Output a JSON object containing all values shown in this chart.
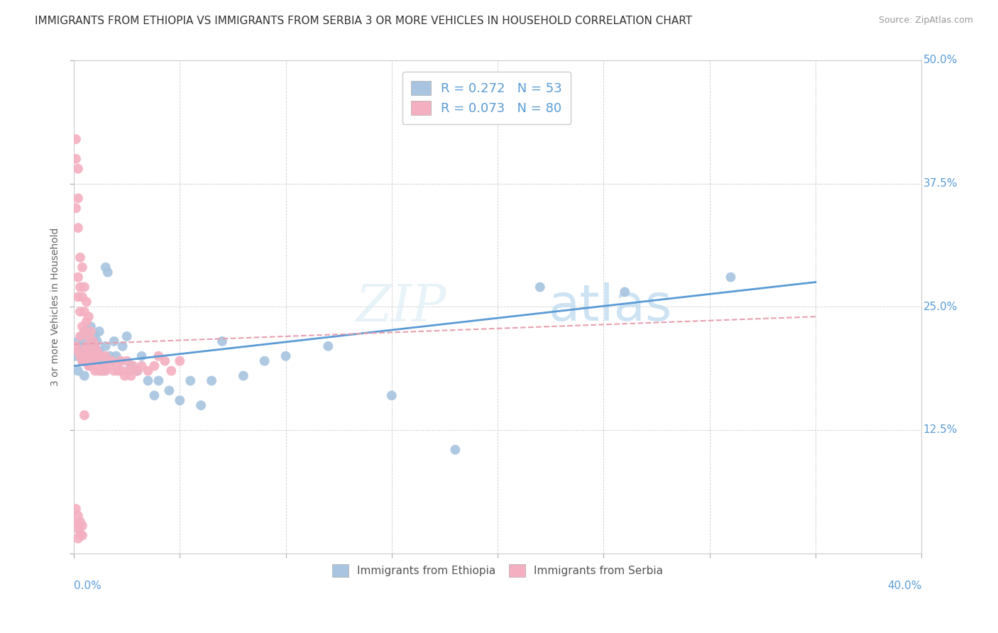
{
  "title": "IMMIGRANTS FROM ETHIOPIA VS IMMIGRANTS FROM SERBIA 3 OR MORE VEHICLES IN HOUSEHOLD CORRELATION CHART",
  "source": "Source: ZipAtlas.com",
  "ylabel_label": "3 or more Vehicles in Household",
  "legend_bottom": [
    "Immigrants from Ethiopia",
    "Immigrants from Serbia"
  ],
  "series": [
    {
      "name": "Immigrants from Ethiopia",
      "R": 0.272,
      "N": 53,
      "color_marker": "#a8c4e0",
      "color_line": "#5b9bd5",
      "line_style": "solid",
      "x": [
        0.001,
        0.002,
        0.002,
        0.003,
        0.003,
        0.004,
        0.004,
        0.005,
        0.005,
        0.006,
        0.006,
        0.007,
        0.008,
        0.008,
        0.009,
        0.01,
        0.01,
        0.011,
        0.012,
        0.012,
        0.013,
        0.014,
        0.015,
        0.015,
        0.016,
        0.017,
        0.018,
        0.019,
        0.02,
        0.022,
        0.023,
        0.025,
        0.027,
        0.03,
        0.032,
        0.035,
        0.038,
        0.04,
        0.045,
        0.05,
        0.055,
        0.06,
        0.065,
        0.07,
        0.08,
        0.09,
        0.1,
        0.12,
        0.15,
        0.18,
        0.22,
        0.26,
        0.31
      ],
      "y": [
        0.2,
        0.215,
        0.185,
        0.21,
        0.2,
        0.22,
        0.195,
        0.21,
        0.18,
        0.225,
        0.205,
        0.215,
        0.195,
        0.23,
        0.21,
        0.2,
        0.22,
        0.215,
        0.205,
        0.225,
        0.195,
        0.185,
        0.29,
        0.21,
        0.285,
        0.2,
        0.195,
        0.215,
        0.2,
        0.195,
        0.21,
        0.22,
        0.19,
        0.185,
        0.2,
        0.175,
        0.16,
        0.175,
        0.165,
        0.155,
        0.175,
        0.15,
        0.175,
        0.215,
        0.18,
        0.195,
        0.2,
        0.21,
        0.16,
        0.105,
        0.27,
        0.265,
        0.28
      ],
      "trend_x": [
        0.0,
        0.35
      ],
      "trend_y": [
        0.19,
        0.275
      ]
    },
    {
      "name": "Immigrants from Serbia",
      "R": 0.073,
      "N": 80,
      "color_marker": "#f4b0c0",
      "color_line": "#e8a0b0",
      "line_style": "dashed",
      "x": [
        0.001,
        0.001,
        0.001,
        0.001,
        0.002,
        0.002,
        0.002,
        0.002,
        0.002,
        0.002,
        0.003,
        0.003,
        0.003,
        0.003,
        0.003,
        0.004,
        0.004,
        0.004,
        0.004,
        0.005,
        0.005,
        0.005,
        0.005,
        0.005,
        0.006,
        0.006,
        0.006,
        0.006,
        0.007,
        0.007,
        0.007,
        0.007,
        0.008,
        0.008,
        0.008,
        0.009,
        0.009,
        0.01,
        0.01,
        0.01,
        0.011,
        0.011,
        0.012,
        0.012,
        0.013,
        0.013,
        0.014,
        0.015,
        0.015,
        0.016,
        0.017,
        0.018,
        0.019,
        0.02,
        0.021,
        0.022,
        0.023,
        0.024,
        0.025,
        0.026,
        0.027,
        0.028,
        0.03,
        0.032,
        0.035,
        0.038,
        0.04,
        0.043,
        0.046,
        0.05,
        0.001,
        0.001,
        0.002,
        0.002,
        0.002,
        0.003,
        0.003,
        0.004,
        0.004,
        0.005
      ],
      "y": [
        0.42,
        0.4,
        0.35,
        0.21,
        0.39,
        0.36,
        0.33,
        0.28,
        0.26,
        0.205,
        0.3,
        0.27,
        0.245,
        0.22,
        0.2,
        0.29,
        0.26,
        0.23,
        0.195,
        0.27,
        0.245,
        0.225,
        0.205,
        0.195,
        0.255,
        0.235,
        0.21,
        0.195,
        0.24,
        0.22,
        0.2,
        0.19,
        0.225,
        0.205,
        0.19,
        0.215,
        0.195,
        0.21,
        0.2,
        0.185,
        0.205,
        0.19,
        0.2,
        0.185,
        0.2,
        0.185,
        0.19,
        0.2,
        0.185,
        0.19,
        0.195,
        0.195,
        0.185,
        0.19,
        0.185,
        0.195,
        0.185,
        0.18,
        0.195,
        0.185,
        0.18,
        0.19,
        0.185,
        0.19,
        0.185,
        0.19,
        0.2,
        0.195,
        0.185,
        0.195,
        0.045,
        0.03,
        0.038,
        0.025,
        0.015,
        0.032,
        0.02,
        0.028,
        0.018,
        0.14
      ],
      "trend_x": [
        0.0,
        0.35
      ],
      "trend_y": [
        0.212,
        0.24
      ]
    }
  ],
  "xlim": [
    0.0,
    0.4
  ],
  "ylim": [
    0.0,
    0.5
  ],
  "yticks": [
    0.0,
    0.125,
    0.25,
    0.375,
    0.5
  ],
  "ytick_labels": [
    "",
    "12.5%",
    "25.0%",
    "37.5%",
    "50.0%"
  ],
  "background_color": "#ffffff",
  "grid_color": "#cccccc",
  "watermark_text": "ZIP",
  "watermark_text2": "atlas",
  "title_fontsize": 11,
  "tick_color": "#5b9bd5"
}
